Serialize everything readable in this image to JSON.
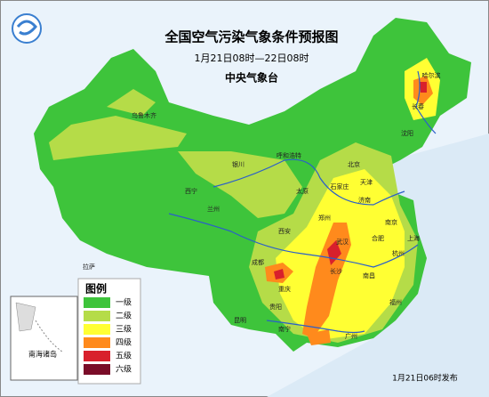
{
  "header": {
    "title": "全国空气污染气象条件预报图",
    "period": "1月21日08时—22日08时",
    "issuer": "中央气象台"
  },
  "legend": {
    "title": "图例",
    "items": [
      {
        "label": "一级",
        "color": "#3ec43b"
      },
      {
        "label": "二级",
        "color": "#b5dc48"
      },
      {
        "label": "三级",
        "color": "#ffff33"
      },
      {
        "label": "四级",
        "color": "#ff8a1c"
      },
      {
        "label": "五级",
        "color": "#d8202c"
      },
      {
        "label": "六级",
        "color": "#7a0c28"
      }
    ]
  },
  "inset": {
    "label": "南海诸岛"
  },
  "cities": [
    "乌鲁木齐",
    "拉萨",
    "西宁",
    "兰州",
    "银川",
    "呼和浩特",
    "北京",
    "天津",
    "石家庄",
    "太原",
    "济南",
    "郑州",
    "西安",
    "成都",
    "重庆",
    "贵阳",
    "昆明",
    "南宁",
    "广州",
    "长沙",
    "武汉",
    "合肥",
    "南京",
    "上海",
    "杭州",
    "南昌",
    "福州",
    "哈尔滨",
    "长春",
    "沈阳"
  ],
  "footer": {
    "release": "1月21日06时发布"
  }
}
